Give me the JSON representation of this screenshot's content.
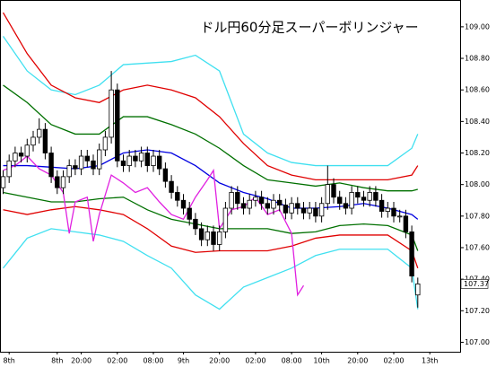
{
  "chart_data": {
    "type": "candlestick",
    "title": "ドル円60分足スーパーボリンジャー",
    "categories": [
      null,
      "8th",
      null,
      null,
      null,
      null,
      null,
      null,
      null,
      "8th",
      null,
      null,
      null,
      "20:00",
      null,
      null,
      null,
      null,
      null,
      "02:00",
      null,
      null,
      null,
      null,
      null,
      "08:00",
      null,
      null,
      null,
      null,
      "9th",
      null,
      null,
      null,
      null,
      null,
      "20:00",
      null,
      null,
      null,
      null,
      null,
      "02:00",
      null,
      null,
      null,
      null,
      null,
      "08:00",
      null,
      null,
      null,
      null,
      "10th",
      null,
      null,
      null,
      null,
      null,
      "20:00",
      null,
      null,
      null,
      null,
      null,
      "02:00",
      null,
      null,
      null,
      null,
      null,
      "13th"
    ],
    "open": [
      107.98,
      108.05,
      108.15,
      108.2,
      108.18,
      108.25,
      108.3,
      108.35,
      108.2,
      108.05,
      107.98,
      108.05,
      108.12,
      108.1,
      108.18,
      108.15,
      108.1,
      108.22,
      108.3,
      108.6,
      108.15,
      108.12,
      108.18,
      108.15,
      108.2,
      108.12,
      108.18,
      108.1,
      108.02,
      107.95,
      107.9,
      107.85,
      107.78,
      107.72,
      107.65,
      107.7,
      107.62,
      107.7,
      107.85,
      107.95,
      107.88,
      107.85,
      107.9,
      107.92,
      107.88,
      107.85,
      107.9,
      107.87,
      107.82,
      107.88,
      107.85,
      107.82,
      107.85,
      107.8,
      107.88,
      108.0,
      107.92,
      107.88,
      107.85,
      107.95,
      107.92,
      107.9,
      107.95,
      107.9,
      107.83,
      107.85,
      107.8,
      107.8,
      107.7,
      107.3,
      null,
      null
    ],
    "high": [
      108.09,
      108.19,
      108.24,
      108.24,
      108.29,
      108.34,
      108.42,
      108.39,
      108.24,
      108.09,
      108.09,
      108.16,
      108.16,
      108.22,
      108.22,
      108.19,
      108.26,
      108.34,
      108.72,
      108.64,
      108.19,
      108.22,
      108.22,
      108.24,
      108.24,
      108.22,
      108.22,
      108.14,
      108.06,
      107.99,
      107.94,
      107.89,
      107.82,
      107.76,
      107.74,
      107.74,
      107.74,
      107.89,
      107.99,
      107.99,
      107.92,
      107.94,
      107.96,
      107.96,
      107.92,
      107.94,
      107.94,
      107.91,
      107.92,
      107.92,
      107.89,
      107.89,
      107.89,
      107.92,
      108.12,
      108.04,
      107.96,
      107.92,
      107.99,
      107.99,
      107.96,
      107.99,
      107.99,
      107.94,
      107.89,
      107.89,
      107.84,
      107.84,
      107.74,
      107.41,
      null,
      null
    ],
    "low": [
      107.94,
      108.01,
      108.11,
      108.14,
      108.14,
      108.21,
      108.26,
      108.16,
      108.01,
      107.94,
      107.94,
      108.01,
      108.06,
      108.06,
      108.11,
      108.06,
      108.06,
      108.18,
      108.26,
      108.11,
      108.08,
      108.08,
      108.11,
      108.11,
      108.08,
      108.08,
      108.06,
      107.98,
      107.91,
      107.86,
      107.81,
      107.74,
      107.68,
      107.61,
      107.61,
      107.58,
      107.58,
      107.66,
      107.81,
      107.84,
      107.81,
      107.81,
      107.86,
      107.84,
      107.81,
      107.81,
      107.83,
      107.78,
      107.78,
      107.81,
      107.78,
      107.78,
      107.76,
      107.76,
      107.84,
      107.88,
      107.84,
      107.81,
      107.81,
      107.88,
      107.86,
      107.86,
      107.86,
      107.79,
      107.79,
      107.76,
      107.76,
      107.66,
      107.38,
      107.22,
      null,
      null
    ],
    "close": [
      108.05,
      108.15,
      108.2,
      108.18,
      108.25,
      108.3,
      108.35,
      108.2,
      108.05,
      107.98,
      108.05,
      108.12,
      108.1,
      108.18,
      108.15,
      108.1,
      108.22,
      108.3,
      108.6,
      108.15,
      108.12,
      108.18,
      108.15,
      108.2,
      108.12,
      108.18,
      108.1,
      108.02,
      107.95,
      107.9,
      107.85,
      107.78,
      107.72,
      107.65,
      107.7,
      107.62,
      107.7,
      107.85,
      107.95,
      107.88,
      107.85,
      107.9,
      107.92,
      107.88,
      107.85,
      107.9,
      107.87,
      107.82,
      107.88,
      107.85,
      107.82,
      107.85,
      107.8,
      107.88,
      108.0,
      107.92,
      107.88,
      107.85,
      107.95,
      107.92,
      107.9,
      107.95,
      107.9,
      107.83,
      107.85,
      107.8,
      107.8,
      107.7,
      107.42,
      107.37,
      null,
      null
    ],
    "up_color": "#ffffff",
    "down_color": "#000000",
    "bands": [
      {
        "color": "#40e0f0",
        "x": [
          0,
          4,
          8,
          12,
          16,
          20,
          24,
          28,
          32,
          36,
          40,
          44,
          48,
          52,
          56,
          60,
          64,
          68,
          69
        ],
        "values": [
          108.94,
          108.72,
          108.6,
          108.57,
          108.63,
          108.76,
          108.77,
          108.78,
          108.82,
          108.72,
          108.32,
          108.2,
          108.14,
          108.12,
          108.12,
          108.12,
          108.12,
          108.23,
          108.32
        ]
      },
      {
        "color": "#e00000",
        "x": [
          0,
          4,
          8,
          12,
          16,
          20,
          24,
          28,
          32,
          36,
          40,
          44,
          48,
          52,
          56,
          60,
          64,
          68,
          69
        ],
        "values": [
          109.09,
          108.83,
          108.63,
          108.55,
          108.52,
          108.6,
          108.63,
          108.6,
          108.55,
          108.43,
          108.26,
          108.12,
          108.06,
          108.03,
          108.03,
          108.03,
          108.03,
          108.06,
          108.12
        ]
      },
      {
        "color": "#007000",
        "x": [
          0,
          4,
          8,
          12,
          16,
          20,
          24,
          28,
          32,
          36,
          40,
          44,
          48,
          52,
          56,
          60,
          64,
          68,
          69
        ],
        "values": [
          108.63,
          108.52,
          108.38,
          108.32,
          108.32,
          108.43,
          108.43,
          108.38,
          108.32,
          108.23,
          108.12,
          108.03,
          108.01,
          107.99,
          108.01,
          107.98,
          107.96,
          107.96,
          107.97
        ]
      },
      {
        "color": "#0000e0",
        "x": [
          0,
          4,
          8,
          12,
          16,
          20,
          24,
          28,
          32,
          36,
          40,
          44,
          48,
          52,
          56,
          60,
          64,
          68,
          69
        ],
        "values": [
          108.12,
          108.12,
          108.11,
          108.1,
          108.12,
          108.2,
          108.22,
          108.2,
          108.12,
          108.01,
          107.95,
          107.91,
          107.85,
          107.85,
          107.86,
          107.88,
          107.85,
          107.81,
          107.78
        ]
      },
      {
        "color": "#007000",
        "x": [
          0,
          4,
          8,
          12,
          16,
          20,
          24,
          28,
          32,
          36,
          40,
          44,
          48,
          52,
          56,
          60,
          64,
          68,
          69
        ],
        "values": [
          107.95,
          107.92,
          107.89,
          107.89,
          107.91,
          107.92,
          107.84,
          107.78,
          107.75,
          107.72,
          107.72,
          107.72,
          107.69,
          107.7,
          107.74,
          107.75,
          107.74,
          107.68,
          107.58
        ]
      },
      {
        "color": "#e00000",
        "x": [
          0,
          4,
          8,
          12,
          16,
          20,
          24,
          28,
          32,
          36,
          40,
          44,
          48,
          52,
          56,
          60,
          64,
          68,
          69
        ],
        "values": [
          107.84,
          107.81,
          107.84,
          107.86,
          107.84,
          107.81,
          107.72,
          107.61,
          107.57,
          107.58,
          107.58,
          107.58,
          107.61,
          107.66,
          107.68,
          107.68,
          107.68,
          107.58,
          107.47
        ]
      },
      {
        "color": "#40e0f0",
        "x": [
          0,
          4,
          8,
          12,
          16,
          20,
          24,
          28,
          32,
          36,
          40,
          44,
          48,
          52,
          56,
          60,
          64,
          68,
          69
        ],
        "values": [
          107.47,
          107.66,
          107.72,
          107.7,
          107.68,
          107.64,
          107.55,
          107.47,
          107.3,
          107.21,
          107.35,
          107.41,
          107.47,
          107.55,
          107.59,
          107.59,
          107.59,
          107.47,
          107.21
        ]
      },
      {
        "color": "#e020e0",
        "x": [
          0,
          2,
          4,
          6,
          8,
          10,
          11,
          12,
          14,
          15,
          16,
          18,
          20,
          22,
          24,
          26,
          28,
          30,
          32,
          34,
          35,
          36,
          38,
          40,
          42,
          44,
          46,
          48,
          49,
          50
        ],
        "values": [
          108.09,
          108.12,
          108.18,
          108.1,
          108.06,
          107.95,
          107.69,
          107.89,
          107.92,
          107.64,
          107.81,
          108.06,
          108.01,
          107.95,
          107.98,
          107.89,
          107.81,
          107.78,
          107.92,
          108.03,
          108.09,
          107.72,
          107.84,
          107.86,
          107.92,
          107.81,
          107.84,
          107.69,
          107.3,
          107.36
        ]
      }
    ],
    "last_price": 107.37,
    "ylim": [
      106.94,
      109.17
    ],
    "yticks": [
      {
        "value": 107,
        "label": "107.00"
      },
      {
        "value": 107.2,
        "label": "107.20"
      },
      {
        "value": 107.4,
        "label": "107.40"
      },
      {
        "value": 107.6,
        "label": "107.60"
      },
      {
        "value": 107.8,
        "label": "107.80"
      },
      {
        "value": 108,
        "label": "108.00"
      },
      {
        "value": 108.2,
        "label": "108.20"
      },
      {
        "value": 108.4,
        "label": "108.40"
      },
      {
        "value": 108.6,
        "label": "108.60"
      },
      {
        "value": 108.8,
        "label": "108.80"
      },
      {
        "value": 109,
        "label": "109.00"
      }
    ]
  }
}
